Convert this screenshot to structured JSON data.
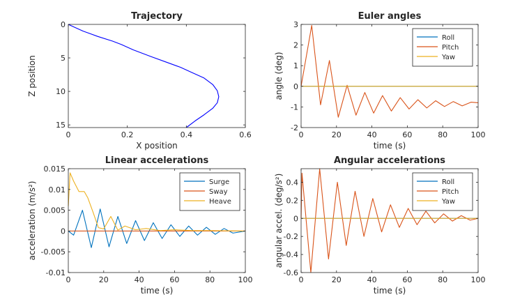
{
  "chart_data": [
    {
      "type": "line",
      "title": "Trajectory",
      "xlabel": "X position",
      "ylabel": "Z position",
      "xlim": [
        0,
        0.6
      ],
      "ylim": [
        0,
        15.4
      ],
      "y_reversed": true,
      "grid": false,
      "xticks": [
        "0",
        "0.2",
        "0.4",
        "0.6"
      ],
      "yticks": [
        "0",
        "5",
        "10",
        "15"
      ],
      "series": [
        {
          "color": "#0000ff",
          "x": [
            0,
            0.02,
            0.05,
            0.1,
            0.15,
            0.18,
            0.22,
            0.28,
            0.33,
            0.38,
            0.42,
            0.46,
            0.49,
            0.505,
            0.51,
            0.505,
            0.49,
            0.46,
            0.43,
            0.4
          ],
          "y": [
            0,
            0.4,
            1.0,
            1.8,
            2.5,
            3.0,
            3.8,
            4.8,
            5.6,
            6.4,
            7.2,
            8.0,
            9.0,
            9.9,
            10.8,
            11.7,
            12.5,
            13.5,
            14.4,
            15.4
          ]
        }
      ]
    },
    {
      "type": "line",
      "title": "Euler angles",
      "xlabel": "time (s)",
      "ylabel": "angle (deg)",
      "xlim": [
        0,
        100
      ],
      "ylim": [
        -2,
        3
      ],
      "grid": false,
      "legend_position": "top-right",
      "xticks": [
        "0",
        "20",
        "40",
        "60",
        "80",
        "100"
      ],
      "yticks": [
        "-2",
        "-1",
        "0",
        "1",
        "2",
        "3"
      ],
      "series": [
        {
          "name": "Roll",
          "color": "#0072bd",
          "x": [
            0,
            100
          ],
          "y": [
            0,
            0
          ]
        },
        {
          "name": "Pitch",
          "color": "#d95319",
          "x": [
            0,
            6,
            11,
            16,
            21,
            26,
            31,
            36,
            41,
            46,
            51,
            56,
            61,
            66,
            71,
            76,
            81,
            86,
            91,
            96,
            100
          ],
          "y": [
            0,
            2.95,
            -0.9,
            1.25,
            -1.5,
            0.05,
            -1.4,
            -0.3,
            -1.3,
            -0.45,
            -1.2,
            -0.55,
            -1.1,
            -0.65,
            -1.05,
            -0.7,
            -0.98,
            -0.74,
            -0.95,
            -0.77,
            -0.8
          ]
        },
        {
          "name": "Yaw",
          "color": "#edb120",
          "x": [
            0,
            100
          ],
          "y": [
            0,
            0
          ]
        }
      ]
    },
    {
      "type": "line",
      "title": "Linear accelerations",
      "xlabel": "time (s)",
      "ylabel": "acceleration (m/s²)",
      "xlim": [
        0,
        100
      ],
      "ylim": [
        -0.01,
        0.015
      ],
      "grid": false,
      "legend_position": "top-right",
      "xticks": [
        "0",
        "20",
        "40",
        "60",
        "80",
        "100"
      ],
      "yticks": [
        "-0.01",
        "-0.005",
        "0",
        "0.005",
        "0.01",
        "0.015"
      ],
      "series": [
        {
          "name": "Surge",
          "color": "#0072bd",
          "x": [
            0,
            3,
            8,
            13,
            18,
            23,
            28,
            33,
            38,
            43,
            48,
            53,
            58,
            63,
            68,
            73,
            78,
            83,
            88,
            93,
            100
          ],
          "y": [
            0,
            -0.001,
            0.005,
            -0.004,
            0.0053,
            -0.0038,
            0.0035,
            -0.003,
            0.0025,
            -0.0023,
            0.002,
            -0.0018,
            0.0015,
            -0.0013,
            0.0012,
            -0.001,
            0.0009,
            -0.0008,
            0.0006,
            -0.0005,
            0
          ]
        },
        {
          "name": "Sway",
          "color": "#d95319",
          "x": [
            0,
            100
          ],
          "y": [
            0,
            0
          ]
        },
        {
          "name": "Heave",
          "color": "#edb120",
          "x": [
            0,
            1,
            3,
            6,
            9,
            11,
            14,
            17,
            20,
            24,
            28,
            32,
            38,
            44,
            52,
            60,
            70,
            80,
            100
          ],
          "y": [
            0.006,
            0.014,
            0.012,
            0.0095,
            0.0095,
            0.008,
            0.0045,
            0.0008,
            0.0005,
            0.0035,
            0.0002,
            0.0012,
            0.0003,
            0.0006,
            0.0001,
            0.0003,
            0.0001,
            0.0001,
            0
          ]
        }
      ]
    },
    {
      "type": "line",
      "title": "Angular accelerations",
      "xlabel": "time (s)",
      "ylabel": "angular accel. (deg/s²)",
      "xlim": [
        0,
        100
      ],
      "ylim": [
        -0.6,
        0.55
      ],
      "grid": false,
      "legend_position": "top-right",
      "xticks": [
        "0",
        "20",
        "40",
        "60",
        "80",
        "100"
      ],
      "yticks": [
        "-0.6",
        "-0.4",
        "-0.2",
        "0",
        "0.2",
        "0.4"
      ],
      "series": [
        {
          "name": "Roll",
          "color": "#0072bd",
          "x": [
            0,
            100
          ],
          "y": [
            0,
            0
          ]
        },
        {
          "name": "Pitch",
          "color": "#d95319",
          "x": [
            0,
            0.5,
            5.5,
            10.5,
            15.5,
            20.5,
            25.5,
            30.5,
            35.5,
            40.5,
            45.5,
            50.5,
            55.5,
            60.5,
            65.5,
            70.5,
            75.5,
            80.5,
            85.5,
            90.5,
            95.5,
            100
          ],
          "y": [
            0,
            0.5,
            -0.6,
            0.55,
            -0.45,
            0.4,
            -0.3,
            0.3,
            -0.2,
            0.22,
            -0.15,
            0.15,
            -0.1,
            0.11,
            -0.07,
            0.08,
            -0.05,
            0.05,
            -0.03,
            0.03,
            -0.02,
            0
          ]
        },
        {
          "name": "Yaw",
          "color": "#edb120",
          "x": [
            0,
            100
          ],
          "y": [
            0,
            0
          ]
        }
      ]
    }
  ]
}
